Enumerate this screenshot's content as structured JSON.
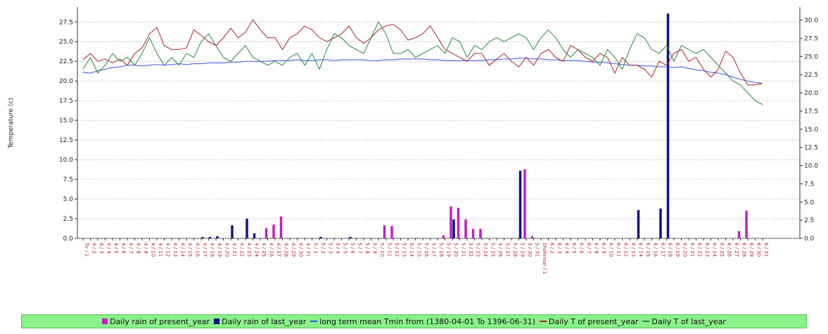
{
  "chart_data": {
    "type": "combo",
    "y_label": "Temperature (c)",
    "ylim": [
      0,
      29.4
    ],
    "yticks": [
      {
        "value": 0,
        "label": "0.0"
      },
      2.5,
      {
        "value": 5,
        "label": "5.0"
      },
      7.5,
      {
        "value": 10,
        "label": "10.0"
      },
      12.5,
      {
        "value": 15,
        "label": "15.0"
      },
      17.5,
      {
        "value": 20,
        "label": "20.0"
      },
      22.5,
      {
        "value": 25,
        "label": "25.0"
      },
      27.5
    ],
    "y2lim": [
      0,
      31.8
    ],
    "y2ticks": [
      {
        "value": 0,
        "label": "0.0"
      },
      2.5,
      {
        "value": 5,
        "label": "5.0"
      },
      7.5,
      {
        "value": 10,
        "label": "10.0"
      },
      12.5,
      {
        "value": 15,
        "label": "15.0"
      },
      17.5,
      {
        "value": 20,
        "label": "20.0"
      },
      22.5,
      {
        "value": 25,
        "label": "25.0"
      },
      27.5,
      {
        "value": 30,
        "label": "30.0"
      }
    ],
    "grid": true,
    "legend": "bottom",
    "categories": [
      "Tir / 1",
      "4 / 2",
      "4 / 3",
      "4 / 4",
      "4 / 5",
      "4 / 6",
      "4 / 7",
      "4 / 8",
      "4 / 9",
      "4 / 10",
      "4 / 11",
      "4 / 12",
      "4 / 13",
      "4 / 14",
      "4 / 15",
      "4 / 16",
      "4 / 17",
      "4 / 18",
      "4 / 19",
      "4 / 20",
      "4 / 21",
      "4 / 22",
      "4 / 23",
      "4 / 24",
      "4 / 25",
      "4 / 26",
      "4 / 27",
      "4 / 28",
      "4 / 29",
      "4 / 30",
      "4 / 31",
      "5 / 1",
      "5 / 2",
      "5 / 3",
      "5 / 4",
      "5 / 5",
      "5 / 6",
      "5 / 7",
      "5 / 8",
      "5 / 9",
      "5 / 10",
      "5 / 11",
      "5 / 12",
      "5 / 13",
      "5 / 14",
      "5 / 15",
      "5 / 16",
      "5 / 17",
      "5 / 18",
      "5 / 19",
      "5 / 20",
      "5 / 21",
      "5 / 22",
      "5 / 23",
      "5 / 24",
      "5 / 25",
      "5 / 26",
      "5 / 27",
      "5 / 28",
      "5 / 29",
      "5 / 30",
      "5 / 31",
      "Shahrivar / 1",
      "6 / 2",
      "6 / 3",
      "6 / 4",
      "6 / 5",
      "6 / 6",
      "6 / 7",
      "6 / 8",
      "6 / 9",
      "6 / 10",
      "6 / 11",
      "6 / 12",
      "6 / 13",
      "6 / 14",
      "6 / 15",
      "6 / 16",
      "6 / 17",
      "6 / 18",
      "6 / 19",
      "6 / 20",
      "6 / 21",
      "6 / 22",
      "6 / 23",
      "6 / 24",
      "6 / 25",
      "6 / 26",
      "6 / 27",
      "6 / 28",
      "6 / 29",
      "6 / 30",
      "6 / 31"
    ],
    "series": [
      {
        "name": "Daily rain of present_year",
        "type": "bar",
        "axis": "y2",
        "color": "#c21fc2",
        "values": [
          0,
          0,
          0,
          0,
          0,
          0,
          0,
          0,
          0,
          0,
          0,
          0,
          0,
          0,
          0,
          0,
          0,
          0,
          0,
          0,
          0,
          0,
          0,
          0,
          0,
          1.4,
          1.9,
          3.0,
          0,
          0,
          0,
          0,
          0,
          0,
          0,
          0,
          0,
          0,
          0,
          0,
          0,
          1.8,
          1.7,
          0,
          0,
          0,
          0,
          0,
          0,
          0.4,
          4.4,
          4.2,
          2.6,
          1.3,
          1.3,
          0,
          0,
          0,
          0,
          0,
          9.5,
          0.3,
          0,
          0,
          0,
          0,
          0,
          0,
          0,
          0,
          0,
          0,
          0,
          0,
          0,
          0,
          0,
          0,
          0,
          0,
          0,
          0,
          0,
          0,
          0,
          0,
          0,
          0,
          0,
          1.0,
          3.8,
          0,
          0
        ]
      },
      {
        "name": "Daily rain of last_year",
        "type": "bar",
        "axis": "y2",
        "color": "#12128c",
        "values": [
          0,
          0,
          0,
          0,
          0,
          0,
          0,
          0,
          0,
          0,
          0,
          0,
          0,
          0,
          0,
          0,
          0.2,
          0.2,
          0.3,
          0,
          1.8,
          0,
          2.7,
          0.7,
          0,
          0,
          0,
          0,
          0,
          0,
          0,
          0,
          0.2,
          0,
          0,
          0,
          0.2,
          0,
          0,
          0,
          0,
          0,
          0,
          0,
          0,
          0,
          0,
          0,
          0,
          0,
          2.6,
          0,
          0,
          0,
          0,
          0,
          0,
          0,
          0,
          9.3,
          0,
          0,
          0,
          0,
          0,
          0,
          0,
          0,
          0,
          0,
          0,
          0,
          0,
          0,
          0,
          3.9,
          0,
          0,
          4.1,
          30.9,
          0,
          0,
          0,
          0,
          0,
          0,
          0,
          0,
          0,
          0,
          0,
          0,
          0
        ]
      },
      {
        "name": "long term mean Tmin from (1380-04-01 To 1396-06-31)",
        "type": "line",
        "color": "#3a55e0",
        "values": [
          21.1,
          21.0,
          21.3,
          21.5,
          21.7,
          21.8,
          22.0,
          22.0,
          21.9,
          22.0,
          22.1,
          22.0,
          22.1,
          22.2,
          22.1,
          22.2,
          22.2,
          22.3,
          22.3,
          22.3,
          22.4,
          22.4,
          22.5,
          22.5,
          22.5,
          22.5,
          22.6,
          22.6,
          22.6,
          22.7,
          22.6,
          22.6,
          22.7,
          22.7,
          22.6,
          22.7,
          22.7,
          22.7,
          22.7,
          22.6,
          22.6,
          22.7,
          22.7,
          22.8,
          22.8,
          22.8,
          22.8,
          22.7,
          22.7,
          22.6,
          22.6,
          22.6,
          22.6,
          22.6,
          22.6,
          22.7,
          22.7,
          22.8,
          22.8,
          22.9,
          22.9,
          22.8,
          22.8,
          22.7,
          22.7,
          22.6,
          22.6,
          22.6,
          22.5,
          22.4,
          22.4,
          22.3,
          22.2,
          22.1,
          22.0,
          22.0,
          21.9,
          21.9,
          21.8,
          21.8,
          21.7,
          21.8,
          21.6,
          21.4,
          21.3,
          21.1,
          21.0,
          20.8,
          20.5,
          20.2,
          20.0,
          19.8,
          19.7
        ]
      },
      {
        "name": "Daily T of present_year",
        "type": "line",
        "color": "#b02222",
        "values": [
          22.7,
          23.5,
          22.5,
          22.8,
          22.3,
          22.8,
          22.0,
          23.5,
          24.2,
          26.0,
          26.8,
          24.5,
          24.0,
          24.0,
          24.2,
          26.5,
          25.8,
          25.0,
          24.5,
          25.5,
          26.7,
          25.5,
          26.2,
          27.8,
          26.5,
          25.5,
          25.5,
          24.0,
          25.5,
          26.0,
          27.0,
          26.5,
          25.5,
          25.0,
          25.5,
          26.0,
          27.0,
          25.5,
          24.8,
          25.5,
          26.5,
          27.0,
          27.2,
          26.5,
          25.2,
          25.5,
          26.0,
          27.0,
          25.5,
          24.0,
          23.5,
          23.0,
          22.5,
          23.5,
          23.5,
          22.0,
          22.8,
          23.5,
          22.5,
          21.8,
          23.0,
          22.0,
          23.5,
          24.0,
          23.0,
          22.5,
          24.5,
          24.0,
          23.0,
          22.5,
          23.5,
          23.0,
          21.0,
          23.0,
          22.0,
          22.0,
          21.5,
          20.5,
          22.5,
          22.0,
          23.5,
          24.0,
          22.5,
          23.0,
          21.5,
          20.5,
          21.5,
          23.8,
          23.0,
          21.0,
          19.5,
          19.5,
          19.7
        ]
      },
      {
        "name": "Daily T of last_year",
        "type": "line",
        "color": "#248a34",
        "values": [
          21.5,
          23.0,
          21.0,
          22.0,
          23.5,
          22.5,
          23.0,
          22.0,
          23.5,
          25.5,
          23.5,
          22.0,
          23.0,
          22.0,
          23.5,
          23.0,
          25.0,
          26.0,
          24.5,
          23.0,
          22.5,
          23.5,
          24.5,
          23.0,
          22.5,
          22.0,
          22.5,
          22.0,
          23.0,
          23.5,
          22.0,
          23.5,
          21.5,
          24.0,
          26.0,
          25.5,
          24.5,
          24.0,
          23.5,
          25.5,
          27.5,
          26.0,
          23.5,
          23.5,
          24.0,
          23.0,
          23.5,
          24.0,
          24.5,
          23.5,
          25.5,
          25.0,
          23.0,
          24.5,
          24.0,
          25.0,
          25.5,
          25.0,
          25.5,
          26.0,
          25.5,
          24.0,
          25.5,
          26.5,
          25.5,
          24.0,
          23.0,
          24.0,
          23.5,
          23.0,
          22.0,
          24.0,
          23.0,
          21.5,
          24.0,
          26.0,
          25.5,
          24.0,
          23.5,
          24.5,
          22.5,
          24.5,
          24.0,
          23.5,
          24.0,
          23.0,
          22.0,
          21.0,
          20.0,
          19.5,
          18.5,
          17.5,
          17.0
        ]
      }
    ]
  }
}
